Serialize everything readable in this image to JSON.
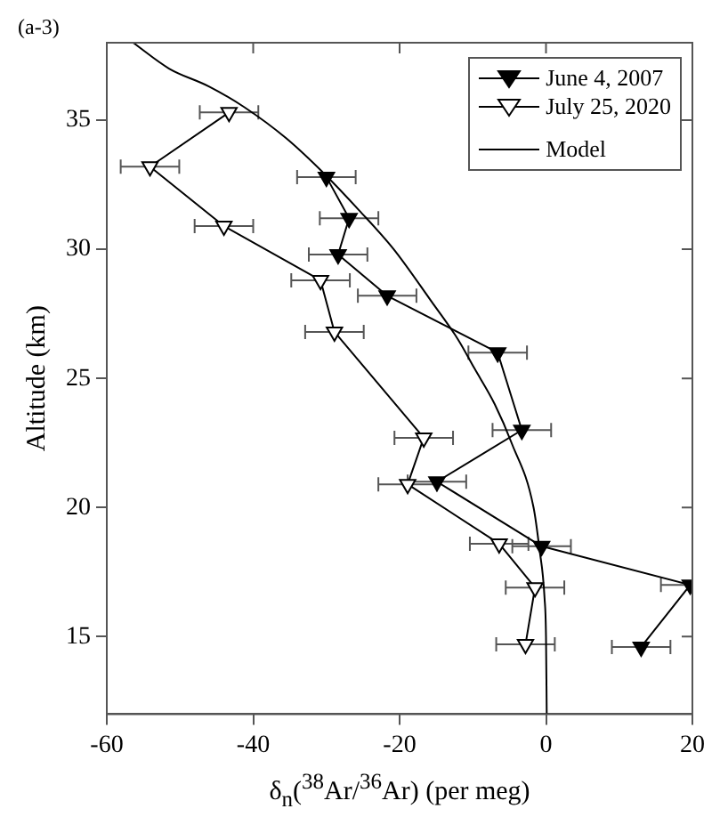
{
  "chart_data": {
    "type": "line",
    "xlabel": "δ$_{n}$($^{38}$Ar/$^{36}$Ar) (per meg)",
    "ylabel": "Altitude (km)",
    "annotations": [
      "(a-3)"
    ],
    "xlim": [
      -60,
      20
    ],
    "xticks": [
      -60,
      -40,
      -20,
      0,
      20
    ],
    "ylim": [
      12,
      38
    ],
    "yticks": [
      15,
      20,
      25,
      30,
      35
    ],
    "grid": false,
    "legend": "top right",
    "series": [
      {
        "name": "June 4, 2007",
        "color": "#000000",
        "marker": "triangle",
        "colors": [
          "#000000",
          "#000000",
          "#000000",
          "#000000",
          "#000000",
          "#000000",
          "#000000",
          "#000000",
          "#000000",
          "#000000"
        ],
        "x": [
          -30,
          -26.9,
          -28.4,
          -21.7,
          -6.6,
          -3.3,
          -14.9,
          -0.6,
          19.7,
          13.0
        ],
        "values": [
          32.8,
          31.2,
          29.8,
          28.2,
          26.0,
          23.0,
          21.0,
          18.5,
          17.0,
          14.6
        ],
        "xerrors": [
          4,
          4,
          4,
          4,
          4,
          4,
          4,
          4,
          4,
          4
        ]
      },
      {
        "name": "July 25, 2020",
        "color": "#000000",
        "marker": "triangle",
        "colors": [
          "#ffffff",
          "#ffffff",
          "#ffffff",
          "#ffffff",
          "#ffffff",
          "#ffffff",
          "#ffffff",
          "#ffffff",
          "#ffffff",
          "#ffffff"
        ],
        "x": [
          -43.3,
          -54.1,
          -44.0,
          -30.8,
          -28.9,
          -16.7,
          -18.9,
          -6.4,
          -1.5,
          -2.8
        ],
        "values": [
          35.3,
          33.2,
          30.9,
          28.8,
          26.8,
          22.7,
          20.9,
          18.6,
          16.9,
          14.7
        ],
        "xerrors": [
          4,
          4,
          4,
          4,
          4,
          4,
          4,
          4,
          4,
          4
        ]
      },
      {
        "name": "Model",
        "color": "#000000",
        "marker": "none",
        "x": [
          -56.4,
          -51.5,
          -46,
          -41.2,
          -35.5,
          -30.2,
          -25.5,
          -20.8,
          -15.7,
          -12,
          -9.8,
          -7,
          -4.7,
          -1.7,
          -0.9,
          -0.2,
          0,
          0.1
        ],
        "values": [
          38,
          37,
          36.3,
          35.5,
          34.3,
          32.9,
          31.5,
          30,
          28,
          26.5,
          25.4,
          24,
          22.5,
          20,
          18.4,
          16.5,
          15,
          12
        ]
      }
    ]
  }
}
